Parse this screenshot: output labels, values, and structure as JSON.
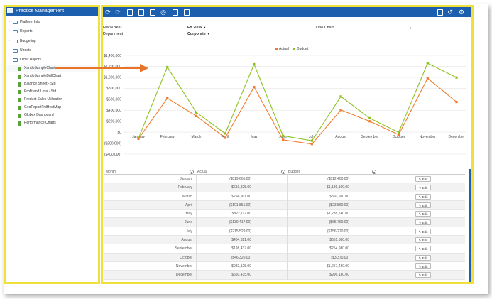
{
  "left_panel": {
    "title": "Practice Management",
    "folders": [
      {
        "label": "Platform Info"
      },
      {
        "label": "Reports"
      },
      {
        "label": "Budgeting"
      },
      {
        "label": "Update"
      },
      {
        "label": "Other Repors"
      }
    ],
    "reports": [
      {
        "label": "XandoSampleChart"
      },
      {
        "label": "XandoSampleDrillChart"
      },
      {
        "label": "Balance Sheet - Std"
      },
      {
        "label": "Profit and Loss - Std"
      },
      {
        "label": "Product Sales Utilisation"
      },
      {
        "label": "GeoReportTrdHeatMap"
      },
      {
        "label": "Globex Dashboard"
      },
      {
        "label": "Performance Charts"
      }
    ]
  },
  "params": {
    "fiscal_year_label": "Fiscal Year",
    "fiscal_year_value": "FY 2006",
    "department_label": "Department",
    "department_value": "Corporate",
    "chart_type_value": "Line Chart"
  },
  "colors": {
    "actual": "#f07a2a",
    "budget": "#8cc21e",
    "accent": "#1c5fae"
  },
  "chart_data": {
    "type": "line",
    "categories": [
      "January",
      "February",
      "March",
      "April",
      "May",
      "June",
      "July",
      "August",
      "September",
      "October",
      "November",
      "December"
    ],
    "series": [
      {
        "name": "Actual",
        "values": [
          -119665,
          619325,
          294901,
          -101851,
          822112,
          -139417,
          -215529,
          404321,
          198437,
          -46320,
          983125,
          550435
        ]
      },
      {
        "name": "Budget",
        "values": [
          -112400,
          1186100,
          360600,
          -23860,
          1238740,
          -65760,
          -156270,
          651580,
          254980,
          -3370,
          1257430,
          996130
        ]
      }
    ],
    "yticks": [
      "$1,400,000",
      "$1,200,000",
      "$1,000,000",
      "$800,000",
      "$600,000",
      "$400,000",
      "$200,000",
      "$0",
      "($200,000)",
      "($400,000)"
    ],
    "ylim": [
      -400000,
      1400000
    ],
    "grid": "horizontal",
    "legend": "top-center"
  },
  "grid": {
    "columns": [
      "Month",
      "Actual",
      "Budget"
    ],
    "edit_label": "Edit",
    "rows": [
      {
        "month": "January",
        "actual": "($119,665.00)",
        "budget": "($112,400.00)"
      },
      {
        "month": "February",
        "actual": "$619,325.00",
        "budget": "$1,186,100.00"
      },
      {
        "month": "March",
        "actual": "$294,901.00",
        "budget": "$360,600.00"
      },
      {
        "month": "April",
        "actual": "($101,851.00)",
        "budget": "($23,860.00)"
      },
      {
        "month": "May",
        "actual": "$822,112.00",
        "budget": "$1,238,740.00"
      },
      {
        "month": "June",
        "actual": "($139,417.00)",
        "budget": "($65,760.00)"
      },
      {
        "month": "July",
        "actual": "($215,529.00)",
        "budget": "($156,270.00)"
      },
      {
        "month": "August",
        "actual": "$404,321.00",
        "budget": "$651,580.00"
      },
      {
        "month": "September",
        "actual": "$198,437.00",
        "budget": "$254,980.00"
      },
      {
        "month": "October",
        "actual": "($46,320.00)",
        "budget": "($3,370.00)"
      },
      {
        "month": "November",
        "actual": "$983,125.00",
        "budget": "$1,257,430.00"
      },
      {
        "month": "December",
        "actual": "$550,435.00",
        "budget": "$996,130.00"
      }
    ]
  },
  "toolbar_icons": [
    "refresh-icon",
    "redo-icon",
    "report-icon",
    "report-icon",
    "report-icon",
    "target-icon",
    "copy-icon",
    "document-icon",
    "download-icon",
    "history-icon",
    "gear-icon"
  ]
}
